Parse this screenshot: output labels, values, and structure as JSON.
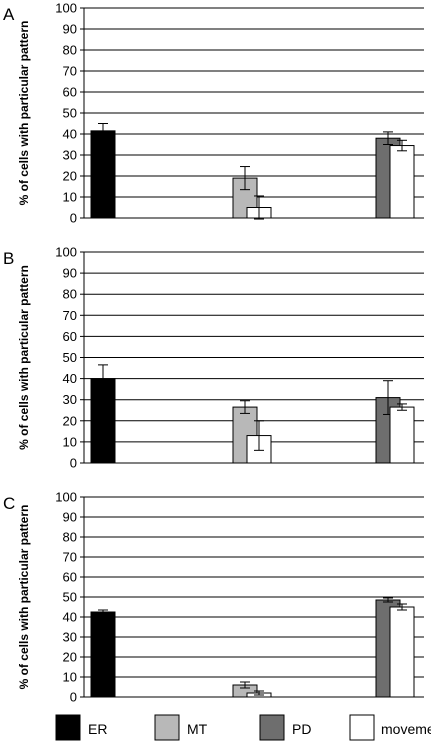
{
  "colors": {
    "ER": "#000000",
    "MT": "#b8b8b8",
    "PD": "#6e6e6e",
    "movement": "#ffffff",
    "grid": "#000000"
  },
  "legend": [
    {
      "key": "ER",
      "label": "ER"
    },
    {
      "key": "MT",
      "label": "MT"
    },
    {
      "key": "PD",
      "label": "PD"
    },
    {
      "key": "movement",
      "label": "movement"
    }
  ],
  "chart_data": [
    {
      "type": "bar",
      "panel": "A",
      "ylabel": "% of cells with particular pattern",
      "ylim": [
        0,
        100
      ],
      "yticks": [
        0,
        10,
        20,
        30,
        40,
        50,
        60,
        70,
        80,
        90,
        100
      ],
      "grid": true,
      "groups": [
        {
          "bars": [
            {
              "series": "ER",
              "value": 41.5,
              "err": 3.5
            }
          ]
        },
        {
          "bars": [
            {
              "series": "MT",
              "value": 19,
              "err": 5.5
            },
            {
              "series": "movement",
              "value": 5,
              "err": 5.5
            }
          ]
        },
        {
          "bars": [
            {
              "series": "PD",
              "value": 38,
              "err": 3
            },
            {
              "series": "movement",
              "value": 34.5,
              "err": 2.5
            }
          ]
        }
      ]
    },
    {
      "type": "bar",
      "panel": "B",
      "ylabel": "% of cells with particular pattern",
      "ylim": [
        0,
        100
      ],
      "yticks": [
        0,
        10,
        20,
        30,
        40,
        50,
        60,
        70,
        80,
        90,
        100
      ],
      "grid": true,
      "groups": [
        {
          "bars": [
            {
              "series": "ER",
              "value": 40,
              "err": 6.5
            }
          ]
        },
        {
          "bars": [
            {
              "series": "MT",
              "value": 26.5,
              "err": 3
            },
            {
              "series": "movement",
              "value": 13,
              "err": 7
            }
          ]
        },
        {
          "bars": [
            {
              "series": "PD",
              "value": 31,
              "err": 8
            },
            {
              "series": "movement",
              "value": 26.5,
              "err": 1.5
            }
          ]
        }
      ]
    },
    {
      "type": "bar",
      "panel": "C",
      "ylabel": "% of cells with particular pattern",
      "ylim": [
        0,
        100
      ],
      "yticks": [
        0,
        10,
        20,
        30,
        40,
        50,
        60,
        70,
        80,
        90,
        100
      ],
      "grid": true,
      "groups": [
        {
          "bars": [
            {
              "series": "ER",
              "value": 42.5,
              "err": 1
            }
          ]
        },
        {
          "bars": [
            {
              "series": "MT",
              "value": 6,
              "err": 1.5
            },
            {
              "series": "movement",
              "value": 2,
              "err": 1
            }
          ]
        },
        {
          "bars": [
            {
              "series": "PD",
              "value": 48.5,
              "err": 1
            },
            {
              "series": "movement",
              "value": 45,
              "err": 1.5
            }
          ]
        }
      ]
    }
  ]
}
